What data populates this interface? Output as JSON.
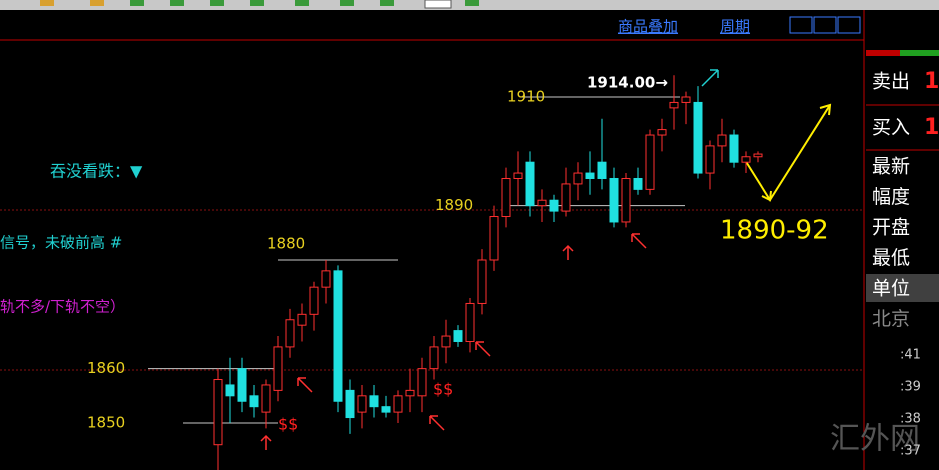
{
  "toolbar": {
    "overlay": "商品叠加",
    "period": "周期"
  },
  "chart": {
    "signals": [
      "吞没看跌：▼",
      "信号，未破前高 #",
      "轨不多/下轨不空）"
    ],
    "levels": [
      1910,
      1890,
      1880,
      1860,
      1850
    ],
    "high_label": "1914.00→",
    "markers": [
      "$$",
      "$$"
    ],
    "forecast": "1890-92",
    "candles": [
      {
        "o": 1846,
        "h": 1860,
        "l": 1840,
        "c": 1858
      },
      {
        "o": 1857,
        "h": 1862,
        "l": 1850,
        "c": 1855
      },
      {
        "o": 1860,
        "h": 1862,
        "l": 1852,
        "c": 1854
      },
      {
        "o": 1855,
        "h": 1857,
        "l": 1851,
        "c": 1853
      },
      {
        "o": 1852,
        "h": 1858,
        "l": 1849,
        "c": 1857
      },
      {
        "o": 1856,
        "h": 1866,
        "l": 1854,
        "c": 1864
      },
      {
        "o": 1864,
        "h": 1871,
        "l": 1862,
        "c": 1869
      },
      {
        "o": 1868,
        "h": 1872,
        "l": 1865,
        "c": 1870
      },
      {
        "o": 1870,
        "h": 1876,
        "l": 1867,
        "c": 1875
      },
      {
        "o": 1875,
        "h": 1880,
        "l": 1872,
        "c": 1878
      },
      {
        "o": 1878,
        "h": 1879,
        "l": 1852,
        "c": 1854
      },
      {
        "o": 1856,
        "h": 1858,
        "l": 1848,
        "c": 1851
      },
      {
        "o": 1852,
        "h": 1857,
        "l": 1849,
        "c": 1855
      },
      {
        "o": 1855,
        "h": 1857,
        "l": 1851,
        "c": 1853
      },
      {
        "o": 1853,
        "h": 1855,
        "l": 1851,
        "c": 1852
      },
      {
        "o": 1852,
        "h": 1856,
        "l": 1850,
        "c": 1855
      },
      {
        "o": 1855,
        "h": 1860,
        "l": 1852,
        "c": 1856
      },
      {
        "o": 1855,
        "h": 1862,
        "l": 1852,
        "c": 1860
      },
      {
        "o": 1860,
        "h": 1866,
        "l": 1858,
        "c": 1864
      },
      {
        "o": 1864,
        "h": 1869,
        "l": 1861,
        "c": 1866
      },
      {
        "o": 1867,
        "h": 1868,
        "l": 1864,
        "c": 1865
      },
      {
        "o": 1865,
        "h": 1873,
        "l": 1863,
        "c": 1872
      },
      {
        "o": 1872,
        "h": 1882,
        "l": 1870,
        "c": 1880
      },
      {
        "o": 1880,
        "h": 1890,
        "l": 1878,
        "c": 1888
      },
      {
        "o": 1888,
        "h": 1897,
        "l": 1886,
        "c": 1895
      },
      {
        "o": 1895,
        "h": 1900,
        "l": 1890,
        "c": 1896
      },
      {
        "o": 1898,
        "h": 1900,
        "l": 1888,
        "c": 1890
      },
      {
        "o": 1890,
        "h": 1893,
        "l": 1887,
        "c": 1891
      },
      {
        "o": 1891,
        "h": 1892,
        "l": 1887,
        "c": 1889
      },
      {
        "o": 1889,
        "h": 1897,
        "l": 1888,
        "c": 1894
      },
      {
        "o": 1894,
        "h": 1898,
        "l": 1891,
        "c": 1896
      },
      {
        "o": 1896,
        "h": 1900,
        "l": 1892,
        "c": 1895
      },
      {
        "o": 1898,
        "h": 1906,
        "l": 1893,
        "c": 1895
      },
      {
        "o": 1895,
        "h": 1897,
        "l": 1886,
        "c": 1887
      },
      {
        "o": 1887,
        "h": 1896,
        "l": 1886,
        "c": 1895
      },
      {
        "o": 1895,
        "h": 1897,
        "l": 1892,
        "c": 1893
      },
      {
        "o": 1893,
        "h": 1904,
        "l": 1892,
        "c": 1903
      },
      {
        "o": 1903,
        "h": 1906,
        "l": 1900,
        "c": 1904
      },
      {
        "o": 1908,
        "h": 1914,
        "l": 1904,
        "c": 1909
      },
      {
        "o": 1909,
        "h": 1911,
        "l": 1905,
        "c": 1910
      },
      {
        "o": 1909,
        "h": 1912,
        "l": 1895,
        "c": 1896
      },
      {
        "o": 1896,
        "h": 1902,
        "l": 1893,
        "c": 1901
      },
      {
        "o": 1901,
        "h": 1906,
        "l": 1898,
        "c": 1903
      },
      {
        "o": 1903,
        "h": 1904,
        "l": 1897,
        "c": 1898
      },
      {
        "o": 1898,
        "h": 1900,
        "l": 1896,
        "c": 1899
      },
      {
        "o": 1899,
        "h": 1900,
        "l": 1898,
        "c": 1899.5
      }
    ]
  },
  "panel": {
    "sell": "卖出",
    "buy": "买入",
    "sell_digit": "1",
    "buy_digit": "1",
    "fields": [
      "最新",
      "幅度",
      "开盘",
      "最低",
      "单位",
      "北京"
    ],
    "times": [
      ":41",
      ":39",
      ":38",
      ":37"
    ]
  },
  "watermark": "汇外网"
}
